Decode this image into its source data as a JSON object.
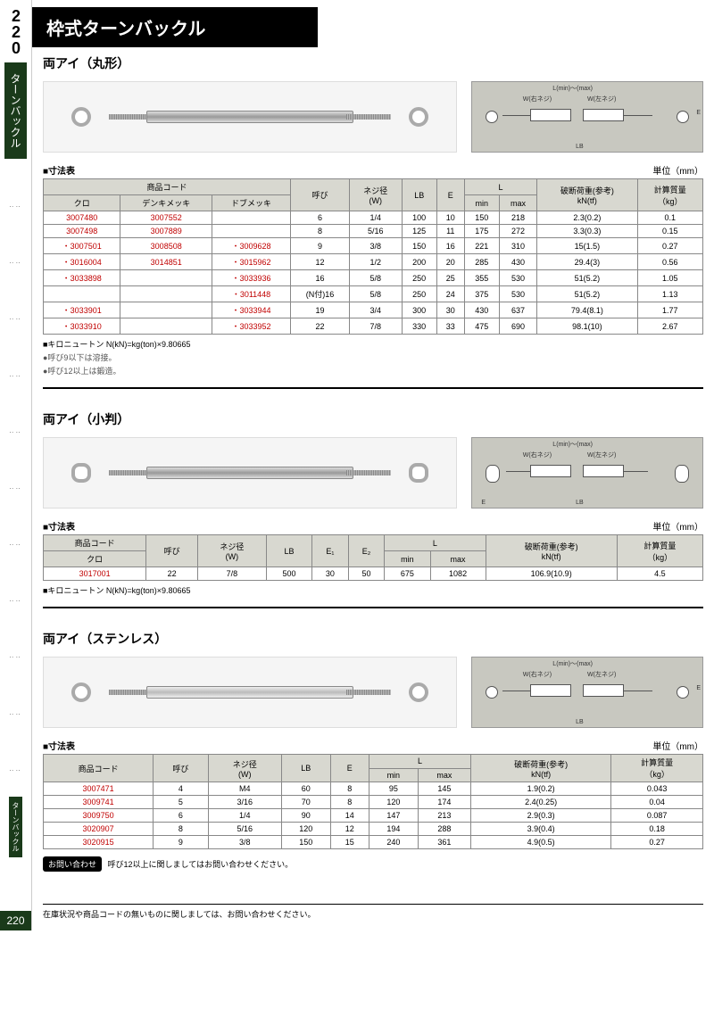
{
  "page_number": "220",
  "sidebar_category": "ターンバックル",
  "main_title": "枠式ターンバックル",
  "side_tab": "ターンバックル",
  "unit_text": "単位（mm）",
  "table_label": "■寸法表",
  "kn_note": "■キロニュートン N(kN)=kg(ton)×9.80665",
  "sections": [
    {
      "title": "両アイ（丸形）",
      "diagram_labels": [
        "L(min)～(max)",
        "W(右ネジ)",
        "W(左ネジ)",
        "LB",
        "E"
      ],
      "notes": [
        "●呼び9以下は溶接。",
        "●呼び12以上は鍛造。"
      ],
      "table": {
        "header_group": "商品コード",
        "headers": [
          "クロ",
          "デンキメッキ",
          "ドブメッキ",
          "呼び",
          "ネジ径\n(W)",
          "LB",
          "E",
          "min",
          "max",
          "破断荷重(参考)\nkN(tf)",
          "計算質量\n（kg）"
        ],
        "l_header": "L",
        "rows": [
          [
            "3007480",
            "3007552",
            "",
            "6",
            "1/4",
            "100",
            "10",
            "150",
            "218",
            "2.3(0.2)",
            "0.1"
          ],
          [
            "3007498",
            "3007889",
            "",
            "8",
            "5/16",
            "125",
            "11",
            "175",
            "272",
            "3.3(0.3)",
            "0.15"
          ],
          [
            "・3007501",
            "3008508",
            "・3009628",
            "9",
            "3/8",
            "150",
            "16",
            "221",
            "310",
            "15(1.5)",
            "0.27"
          ],
          [
            "・3016004",
            "3014851",
            "・3015962",
            "12",
            "1/2",
            "200",
            "20",
            "285",
            "430",
            "29.4(3)",
            "0.56"
          ],
          [
            "・3033898",
            "",
            "・3033936",
            "16",
            "5/8",
            "250",
            "25",
            "355",
            "530",
            "51(5.2)",
            "1.05"
          ],
          [
            "",
            "",
            "・3011448",
            "(N付)16",
            "5/8",
            "250",
            "24",
            "375",
            "530",
            "51(5.2)",
            "1.13"
          ],
          [
            "・3033901",
            "",
            "・3033944",
            "19",
            "3/4",
            "300",
            "30",
            "430",
            "637",
            "79.4(8.1)",
            "1.77"
          ],
          [
            "・3033910",
            "",
            "・3033952",
            "22",
            "7/8",
            "330",
            "33",
            "475",
            "690",
            "98.1(10)",
            "2.67"
          ]
        ]
      }
    },
    {
      "title": "両アイ（小判）",
      "diagram_labels": [
        "L(min)～(max)",
        "W(右ネジ)",
        "W(左ネジ)",
        "LB",
        "E"
      ],
      "table": {
        "header_group": "商品コード",
        "headers": [
          "クロ",
          "呼び",
          "ネジ径\n(W)",
          "LB",
          "E₁",
          "E₂",
          "min",
          "max",
          "破断荷重(参考)\nkN(tf)",
          "計算質量\n（kg）"
        ],
        "l_header": "L",
        "rows": [
          [
            "3017001",
            "22",
            "7/8",
            "500",
            "30",
            "50",
            "675",
            "1082",
            "106.9(10.9)",
            "4.5"
          ]
        ]
      }
    },
    {
      "title": "両アイ（ステンレス）",
      "diagram_labels": [
        "L(min)～(max)",
        "W(右ネジ)",
        "W(左ネジ)",
        "LB",
        "E"
      ],
      "inquiry_label": "お問い合わせ",
      "inquiry_text": "呼び12以上に関しましてはお問い合わせください。",
      "table": {
        "header_group": "商品コード",
        "headers": [
          "商品コード",
          "呼び",
          "ネジ径\n(W)",
          "LB",
          "E",
          "min",
          "max",
          "破断荷重(参考)\nkN(tf)",
          "計算質量\n（kg）"
        ],
        "l_header": "L",
        "rows": [
          [
            "3007471",
            "4",
            "M4",
            "60",
            "8",
            "95",
            "145",
            "1.9(0.2)",
            "0.043"
          ],
          [
            "3009741",
            "5",
            "3/16",
            "70",
            "8",
            "120",
            "174",
            "2.4(0.25)",
            "0.04"
          ],
          [
            "3009750",
            "6",
            "1/4",
            "90",
            "14",
            "147",
            "213",
            "2.9(0.3)",
            "0.087"
          ],
          [
            "3020907",
            "8",
            "5/16",
            "120",
            "12",
            "194",
            "288",
            "3.9(0.4)",
            "0.18"
          ],
          [
            "3020915",
            "9",
            "3/8",
            "150",
            "15",
            "240",
            "361",
            "4.9(0.5)",
            "0.27"
          ]
        ]
      }
    }
  ],
  "footer_note": "在庫状況や商品コードの無いものに関しましては、お問い合わせください。",
  "colors": {
    "sidebar_bg": "#1a3a1a",
    "title_bg": "#000000",
    "th_bg": "#d8d8d0",
    "red_text": "#c00000",
    "diagram_bg": "#c8c8c0"
  }
}
